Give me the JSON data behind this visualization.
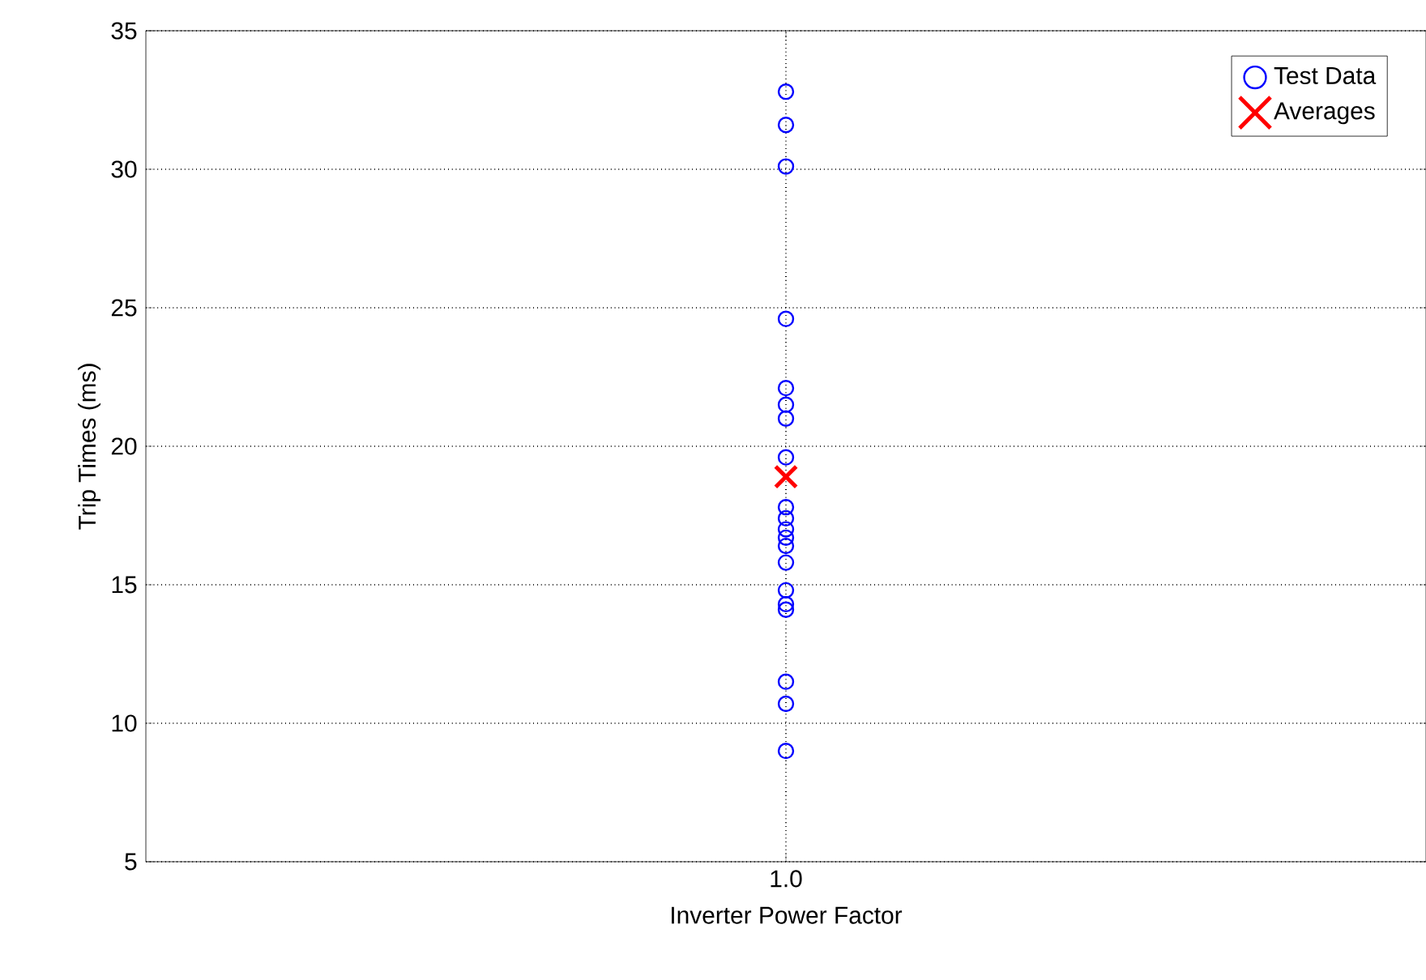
{
  "chart_data": {
    "type": "scatter",
    "xlabel": "Inverter Power Factor",
    "ylabel": "Trip Times (ms)",
    "categories": [
      "1.0"
    ],
    "ylim": [
      5,
      35
    ],
    "yticks": [
      5,
      10,
      15,
      20,
      25,
      30,
      35
    ],
    "grid": true,
    "legend": "top right",
    "series": [
      {
        "name": "Test Data",
        "color": "#0000ff",
        "marker": "circle",
        "x": [
          "1.0",
          "1.0",
          "1.0",
          "1.0",
          "1.0",
          "1.0",
          "1.0",
          "1.0",
          "1.0",
          "1.0",
          "1.0",
          "1.0",
          "1.0",
          "1.0",
          "1.0",
          "1.0",
          "1.0",
          "1.0",
          "1.0",
          "1.0"
        ],
        "values": [
          32.8,
          31.6,
          30.1,
          24.6,
          22.1,
          21.5,
          21.0,
          19.6,
          17.8,
          17.4,
          17.0,
          16.7,
          16.4,
          15.8,
          14.8,
          14.3,
          14.1,
          11.5,
          10.7,
          9.0
        ]
      },
      {
        "name": "Averages",
        "color": "#ff0000",
        "marker": "cross",
        "x": [
          "1.0"
        ],
        "values": [
          18.9
        ]
      }
    ]
  }
}
